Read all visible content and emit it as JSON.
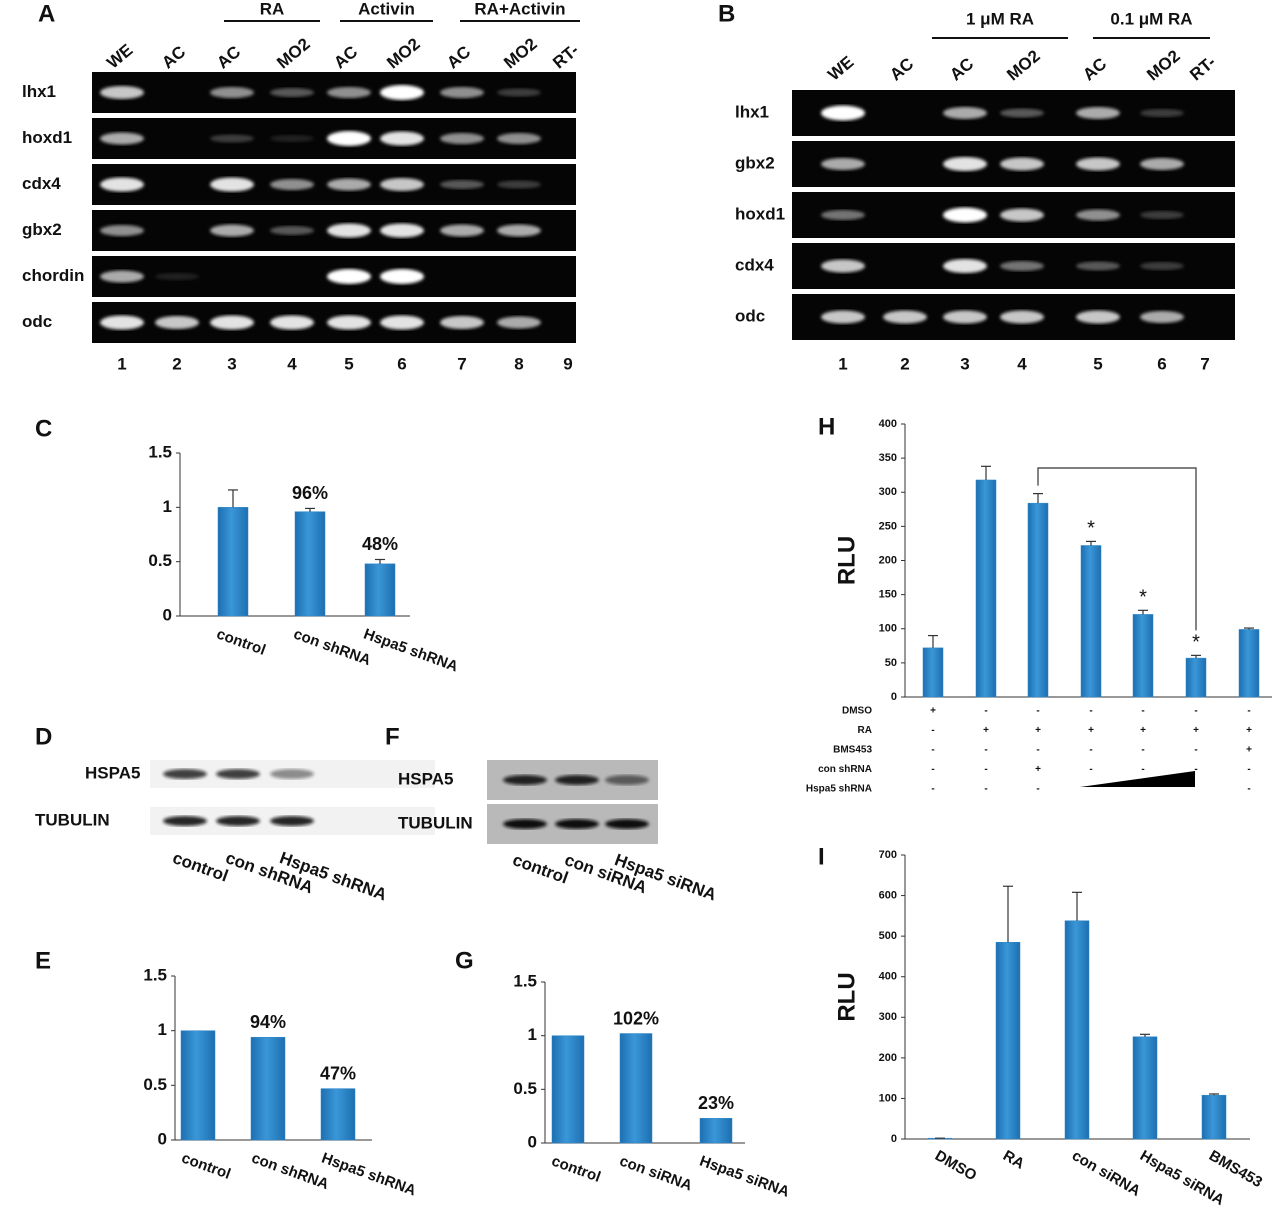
{
  "panel_labels": [
    "A",
    "B",
    "C",
    "D",
    "E",
    "F",
    "G",
    "H",
    "I"
  ],
  "gels": [
    {
      "groups": [
        "RA",
        "Activin",
        "RA+Activin"
      ],
      "lanes": [
        "WE",
        "AC",
        "AC",
        "MO2",
        "AC",
        "MO2",
        "AC",
        "MO2",
        "RT-"
      ],
      "rows": [
        "lhx1",
        "hoxd1",
        "cdx4",
        "gbx2",
        "chordin",
        "odc"
      ],
      "lane_numbers": [
        "1",
        "2",
        "3",
        "4",
        "5",
        "6",
        "7",
        "8",
        "9"
      ]
    },
    {
      "groups": [
        "1 μM RA",
        "0.1 μM RA"
      ],
      "lanes": [
        "WE",
        "AC",
        "AC",
        "MO2",
        "AC",
        "MO2",
        "RT-"
      ],
      "rows": [
        "lhx1",
        "gbx2",
        "hoxd1",
        "cdx4",
        "odc"
      ],
      "lane_numbers": [
        "1",
        "2",
        "3",
        "4",
        "5",
        "6",
        "7"
      ]
    },
    {
      "rows": [
        "HSPA5",
        "TUBULIN"
      ],
      "lanes": [
        "control",
        "con shRNA",
        "Hspa5 shRNA"
      ]
    },
    {
      "rows": [
        "HSPA5",
        "TUBULIN"
      ],
      "lanes": [
        "control",
        "con siRNA",
        "Hspa5 siRNA"
      ]
    }
  ],
  "chart_data": [
    {
      "type": "bar",
      "categories": [
        "control",
        "con shRNA",
        "Hspa5 shRNA"
      ],
      "values": [
        1,
        0.96,
        0.48
      ],
      "error": [
        0.16,
        0.03,
        0.04
      ],
      "value_labels": [
        null,
        "96%",
        "48%"
      ],
      "color": "#2e86c8",
      "ylim": [
        0,
        1.5
      ],
      "yticks": [
        0,
        0.5,
        1,
        1.5
      ]
    },
    {
      "type": "bar",
      "categories": [
        "control",
        "con shRNA",
        "Hspa5 shRNA"
      ],
      "values": [
        1,
        0.94,
        0.47
      ],
      "value_labels": [
        null,
        "94%",
        "47%"
      ],
      "color": "#2e86c8",
      "ylim": [
        0,
        1.5
      ],
      "yticks": [
        0,
        0.5,
        1,
        1.5
      ]
    },
    {
      "type": "bar",
      "categories": [
        "control",
        "con siRNA",
        "Hspa5 siRNA"
      ],
      "values": [
        1,
        1.02,
        0.23
      ],
      "value_labels": [
        null,
        "102%",
        "23%"
      ],
      "color": "#2e86c8",
      "ylim": [
        0,
        1.5
      ],
      "yticks": [
        0,
        0.5,
        1,
        1.5
      ]
    },
    {
      "type": "bar",
      "categories": [
        null,
        null,
        null,
        null,
        null,
        null,
        null
      ],
      "values": [
        72,
        318,
        284,
        222,
        121,
        57,
        99
      ],
      "error": [
        18,
        20,
        14,
        6,
        6,
        4,
        2
      ],
      "ylabel": "RLU",
      "color": "#2e86c8",
      "ylim": [
        0,
        400
      ],
      "yticks": [
        0,
        50,
        100,
        150,
        200,
        250,
        300,
        350,
        400
      ],
      "annotations": [
        "*",
        "*",
        "*"
      ],
      "treatments": [
        {
          "name": "DMSO",
          "signs": [
            "+",
            "-",
            "-",
            "-",
            "-",
            "-",
            "-"
          ]
        },
        {
          "name": "RA",
          "signs": [
            "-",
            "+",
            "+",
            "+",
            "+",
            "+",
            "+"
          ]
        },
        {
          "name": "BMS453",
          "signs": [
            "-",
            "-",
            "-",
            "-",
            "-",
            "-",
            "+"
          ]
        },
        {
          "name": "con shRNA",
          "signs": [
            "-",
            "-",
            "+",
            "-",
            "-",
            "-",
            "-"
          ]
        },
        {
          "name": "Hspa5  shRNA",
          "signs": [
            "-",
            "-",
            "-",
            null,
            null,
            null,
            "-"
          ]
        }
      ]
    },
    {
      "type": "bar",
      "categories": [
        "DMSO",
        "RA",
        "con siRNA",
        "Hspa5 siRNA",
        "BMS453"
      ],
      "values": [
        2,
        485,
        538,
        252,
        108
      ],
      "error": [
        0,
        138,
        70,
        6,
        3
      ],
      "ylabel": "RLU",
      "color": "#2e86c8",
      "ylim": [
        0,
        700
      ],
      "yticks": [
        0,
        100,
        200,
        300,
        400,
        500,
        600,
        700
      ]
    }
  ]
}
